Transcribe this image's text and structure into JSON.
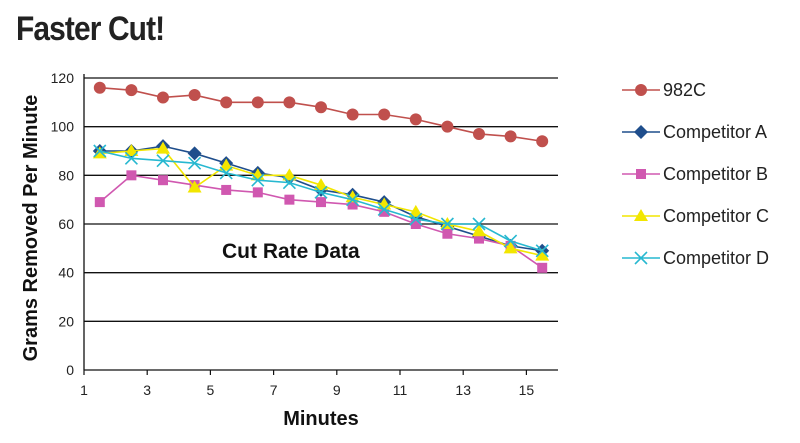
{
  "title": "Faster Cut!",
  "chart_data": {
    "type": "line",
    "annotation": "Cut Rate Data",
    "xlabel": "Minutes",
    "ylabel": "Grams Removed Per Minute",
    "xlim": [
      1,
      16
    ],
    "ylim": [
      0,
      120
    ],
    "x_ticks": [
      1,
      3,
      5,
      7,
      9,
      11,
      13,
      15
    ],
    "y_ticks": [
      0,
      20,
      40,
      60,
      80,
      100,
      120
    ],
    "grid": "horizontal",
    "legend_position": "right",
    "x": [
      1.5,
      2.5,
      3.5,
      4.5,
      5.5,
      6.5,
      7.5,
      8.5,
      9.5,
      10.5,
      11.5,
      12.5,
      13.5,
      14.5,
      15.5
    ],
    "series": [
      {
        "name": "982C",
        "marker": "circle",
        "color": "#c0504d",
        "values": [
          116,
          115,
          112,
          113,
          110,
          110,
          110,
          108,
          105,
          105,
          103,
          100,
          97,
          96,
          94
        ]
      },
      {
        "name": "Competitor A",
        "marker": "diamond",
        "color": "#1f4e8c",
        "values": [
          90,
          90,
          92,
          89,
          85,
          81,
          79,
          74,
          72,
          69,
          63,
          59,
          55,
          51,
          49
        ]
      },
      {
        "name": "Competitor B",
        "marker": "square",
        "color": "#d058b0",
        "values": [
          69,
          80,
          78,
          76,
          74,
          73,
          70,
          69,
          68,
          65,
          60,
          56,
          54,
          51,
          42
        ]
      },
      {
        "name": "Competitor C",
        "marker": "triangle",
        "color": "#f2e600",
        "values": [
          89,
          90,
          91,
          75,
          84,
          80,
          80,
          76,
          71,
          68,
          65,
          60,
          57,
          50,
          47
        ]
      },
      {
        "name": "Competitor D",
        "marker": "x",
        "color": "#27b8d0",
        "values": [
          90,
          87,
          86,
          85,
          81,
          78,
          77,
          73,
          70,
          66,
          62,
          60,
          60,
          53,
          49
        ]
      }
    ]
  }
}
